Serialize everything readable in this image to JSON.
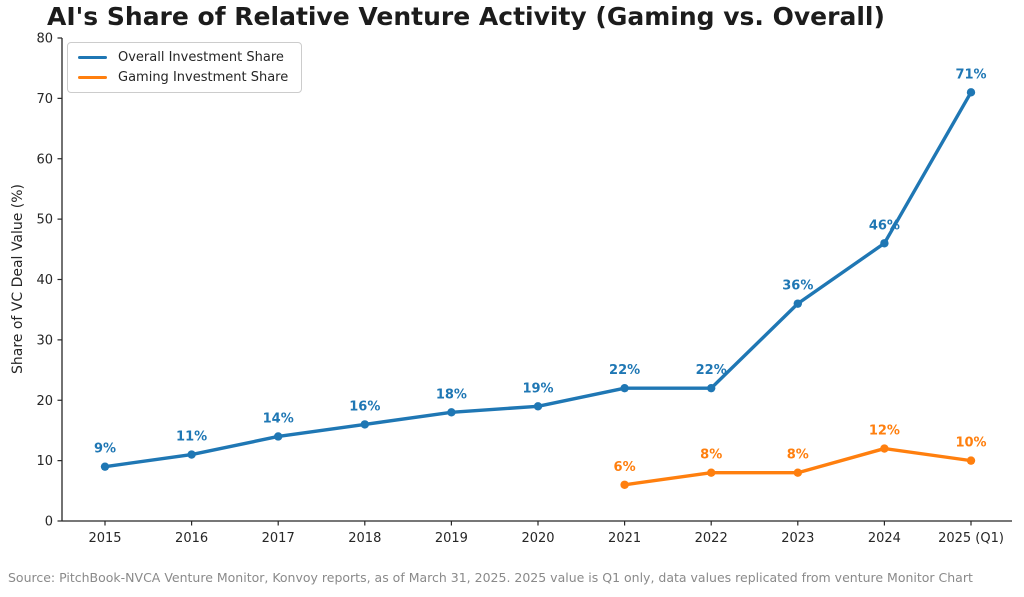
{
  "title": "AI's Share of Relative Venture Activity (Gaming vs. Overall)",
  "source_note": "Source: PitchBook-NVCA Venture Monitor, Konvoy reports, as of March 31, 2025. 2025 value is Q1 only, data values replicated from venture Monitor Chart",
  "chart_data": {
    "type": "line",
    "title": "AI's Share of Relative Venture Activity (Gaming vs. Overall)",
    "xlabel": "",
    "ylabel": "Share of VC Deal Value (%)",
    "ylim": [
      0,
      80
    ],
    "yticks": [
      0,
      10,
      20,
      30,
      40,
      50,
      60,
      70,
      80
    ],
    "categories": [
      "2015",
      "2016",
      "2017",
      "2018",
      "2019",
      "2020",
      "2021",
      "2022",
      "2023",
      "2024",
      "2025 (Q1)"
    ],
    "grid": false,
    "legend_position": "upper left",
    "series": [
      {
        "name": "Overall Investment Share",
        "color": "#1f77b4",
        "values": [
          9,
          11,
          14,
          16,
          18,
          19,
          22,
          22,
          36,
          46,
          71
        ],
        "labels": [
          "9%",
          "11%",
          "14%",
          "16%",
          "18%",
          "19%",
          "22%",
          "22%",
          "36%",
          "46%",
          "71%"
        ]
      },
      {
        "name": "Gaming Investment Share",
        "color": "#ff7f0e",
        "values": [
          null,
          null,
          null,
          null,
          null,
          null,
          6,
          8,
          8,
          12,
          10
        ],
        "labels": [
          null,
          null,
          null,
          null,
          null,
          null,
          "6%",
          "8%",
          "8%",
          "12%",
          "10%"
        ]
      }
    ]
  }
}
